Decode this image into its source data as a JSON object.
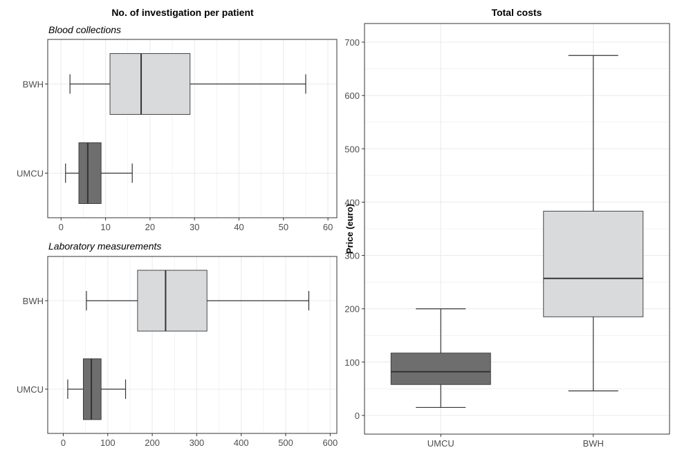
{
  "colors": {
    "umcu": "#6e6e6e",
    "bwh": "#d9dadb",
    "outline": "#333333",
    "grid": "#ebebeb"
  },
  "left_title": "No. of investigation per patient",
  "chart_data": [
    {
      "type": "boxplot",
      "orientation": "horizontal",
      "title": "Blood collections",
      "categories": [
        "BWH",
        "UMCU"
      ],
      "xlim": [
        -3,
        62
      ],
      "xticks": [
        0,
        10,
        20,
        30,
        40,
        50,
        60
      ],
      "grid": true,
      "boxes": [
        {
          "name": "BWH",
          "min": 2,
          "q1": 11,
          "median": 18,
          "q3": 29,
          "max": 55,
          "color": "#d9dadb"
        },
        {
          "name": "UMCU",
          "min": 1,
          "q1": 4,
          "median": 6,
          "q3": 9,
          "max": 16,
          "color": "#6e6e6e"
        }
      ]
    },
    {
      "type": "boxplot",
      "orientation": "horizontal",
      "title": "Laboratory measurements",
      "categories": [
        "BWH",
        "UMCU"
      ],
      "xlim": [
        -35,
        615
      ],
      "xticks": [
        0,
        100,
        200,
        300,
        400,
        500,
        600
      ],
      "grid": true,
      "boxes": [
        {
          "name": "BWH",
          "min": 52,
          "q1": 167,
          "median": 230,
          "q3": 323,
          "max": 552,
          "color": "#d9dadb"
        },
        {
          "name": "UMCU",
          "min": 10,
          "q1": 45,
          "median": 63,
          "q3": 85,
          "max": 140,
          "color": "#6e6e6e"
        }
      ]
    },
    {
      "type": "boxplot",
      "orientation": "vertical",
      "title": "Total costs",
      "ylabel": "Price (euro)",
      "categories": [
        "UMCU",
        "BWH"
      ],
      "ylim": [
        -35,
        735
      ],
      "yticks": [
        0,
        100,
        200,
        300,
        400,
        500,
        600,
        700
      ],
      "grid": true,
      "boxes": [
        {
          "name": "UMCU",
          "min": 15,
          "q1": 58,
          "median": 82,
          "q3": 117,
          "max": 200,
          "color": "#6e6e6e"
        },
        {
          "name": "BWH",
          "min": 46,
          "q1": 185,
          "median": 257,
          "q3": 383,
          "max": 675,
          "color": "#d9dadb"
        }
      ]
    }
  ]
}
